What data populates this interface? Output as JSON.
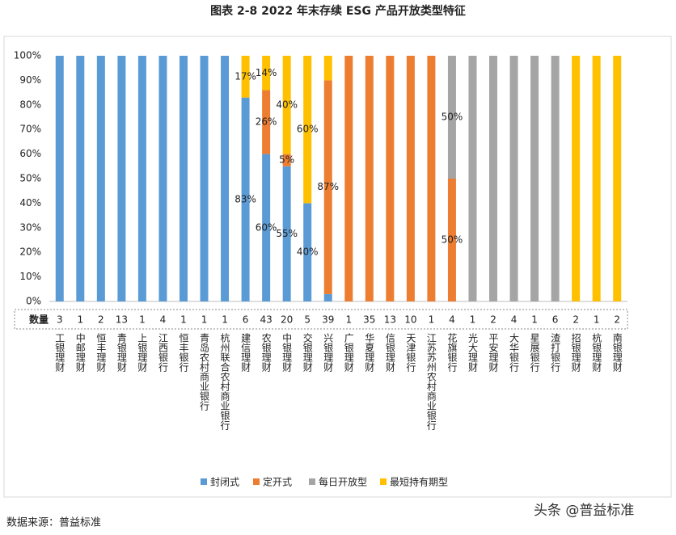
{
  "chart_data": {
    "type": "stacked-bar",
    "title": "图表 2-8   2022 年末存续 ESG 产品开放类型特征",
    "categories": [
      "工银理财",
      "中邮理财",
      "恒丰理财",
      "青银理财",
      "上银理财",
      "江西银行",
      "恒丰银行",
      "青岛农村商业银行",
      "杭州联合农村商业银行",
      "建信理财",
      "农银理财",
      "中银理财",
      "交银理财",
      "兴银理财",
      "广银理财",
      "华夏理财",
      "信银理财",
      "天津银行",
      "江苏苏州农村商业银行",
      "花旗银行",
      "光大理财",
      "平安理财",
      "大华银行",
      "星展银行",
      "渣打银行",
      "招银理财",
      "杭银理财",
      "南银理财"
    ],
    "count_label": "数量",
    "counts": [
      3,
      1,
      2,
      13,
      1,
      4,
      1,
      1,
      1,
      6,
      43,
      20,
      5,
      39,
      1,
      35,
      13,
      10,
      1,
      4,
      1,
      2,
      4,
      1,
      6,
      2,
      1,
      2
    ],
    "series": [
      {
        "name": "封闭式",
        "color": "#5b9bd5",
        "values": [
          100,
          100,
          100,
          100,
          100,
          100,
          100,
          100,
          100,
          83,
          60,
          55,
          40,
          3,
          0,
          0,
          0,
          0,
          0,
          0,
          0,
          0,
          0,
          0,
          0,
          0,
          0,
          0
        ],
        "value_labels": [
          null,
          null,
          null,
          null,
          null,
          null,
          null,
          null,
          null,
          "83%",
          "60%",
          "55%",
          "40%",
          null,
          null,
          null,
          null,
          null,
          null,
          null,
          null,
          null,
          null,
          null,
          null,
          null,
          null,
          null
        ]
      },
      {
        "name": "定开式",
        "color": "#ed7d31",
        "values": [
          0,
          0,
          0,
          0,
          0,
          0,
          0,
          0,
          0,
          0,
          26,
          5,
          0,
          87,
          100,
          100,
          100,
          100,
          100,
          50,
          0,
          0,
          0,
          0,
          0,
          0,
          0,
          0
        ],
        "value_labels": [
          null,
          null,
          null,
          null,
          null,
          null,
          null,
          null,
          null,
          null,
          "26%",
          "5%",
          null,
          "87%",
          null,
          null,
          null,
          null,
          null,
          "50%",
          null,
          null,
          null,
          null,
          null,
          null,
          null,
          null
        ]
      },
      {
        "name": "每日开放型",
        "color": "#a5a5a5",
        "values": [
          0,
          0,
          0,
          0,
          0,
          0,
          0,
          0,
          0,
          0,
          0,
          0,
          0,
          0,
          0,
          0,
          0,
          0,
          0,
          50,
          100,
          100,
          100,
          100,
          100,
          0,
          0,
          0
        ],
        "value_labels": [
          null,
          null,
          null,
          null,
          null,
          null,
          null,
          null,
          null,
          null,
          null,
          null,
          null,
          null,
          null,
          null,
          null,
          null,
          null,
          "50%",
          null,
          null,
          null,
          null,
          null,
          null,
          null,
          null
        ]
      },
      {
        "name": "最短持有期型",
        "color": "#ffc000",
        "values": [
          0,
          0,
          0,
          0,
          0,
          0,
          0,
          0,
          0,
          17,
          14,
          40,
          60,
          10,
          0,
          0,
          0,
          0,
          0,
          0,
          0,
          0,
          0,
          0,
          0,
          100,
          100,
          100
        ],
        "value_labels": [
          null,
          null,
          null,
          null,
          null,
          null,
          null,
          null,
          null,
          "17%",
          "14%",
          "40%",
          "60%",
          null,
          null,
          null,
          null,
          null,
          null,
          null,
          null,
          null,
          null,
          null,
          null,
          null,
          null,
          null
        ]
      }
    ],
    "ylim": [
      0,
      100
    ],
    "yticks": [
      {
        "value": 0,
        "label": "0%"
      },
      {
        "value": 10,
        "label": "10%"
      },
      {
        "value": 20,
        "label": "20%"
      },
      {
        "value": 30,
        "label": "30%"
      },
      {
        "value": 40,
        "label": "40%"
      },
      {
        "value": 50,
        "label": "50%"
      },
      {
        "value": 60,
        "label": "60%"
      },
      {
        "value": 70,
        "label": "70%"
      },
      {
        "value": 80,
        "label": "80%"
      },
      {
        "value": 90,
        "label": "90%"
      },
      {
        "value": 100,
        "label": "100%"
      }
    ],
    "grid": false,
    "legend": "bottom",
    "source": "数据来源：普益标准",
    "watermark": "头条 @普益标准"
  }
}
